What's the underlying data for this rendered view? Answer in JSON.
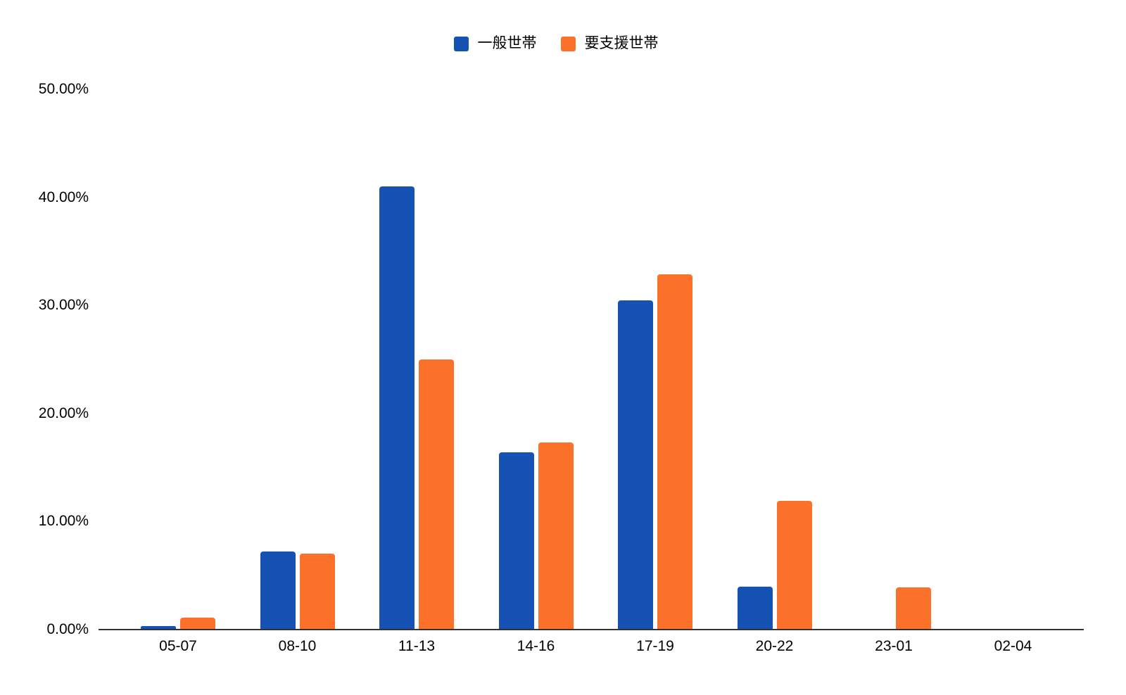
{
  "chart_data": {
    "type": "bar",
    "title": "",
    "xlabel": "",
    "ylabel": "",
    "categories": [
      "05-07",
      "08-10",
      "11-13",
      "14-16",
      "17-19",
      "20-22",
      "23-01",
      "02-04"
    ],
    "series": [
      {
        "name": "一般世帯",
        "color": "#1552b4",
        "values": [
          0.3,
          7.2,
          41.0,
          16.4,
          30.5,
          4.0,
          0.05,
          0.0
        ]
      },
      {
        "name": "要支援世帯",
        "color": "#fc7129",
        "values": [
          1.1,
          7.0,
          25.0,
          17.3,
          32.9,
          11.9,
          3.9,
          0.05
        ]
      }
    ],
    "ylim": [
      0,
      50
    ],
    "yticks": [
      {
        "value": 0,
        "label": "0.00%"
      },
      {
        "value": 10,
        "label": "10.00%"
      },
      {
        "value": 20,
        "label": "20.00%"
      },
      {
        "value": 30,
        "label": "30.00%"
      },
      {
        "value": 40,
        "label": "40.00%"
      },
      {
        "value": 50,
        "label": "50.00%"
      }
    ],
    "legend_position": "top",
    "grid": false,
    "colors": {
      "background": "#ffffff",
      "axis": "#333333",
      "text": "#000000"
    }
  }
}
